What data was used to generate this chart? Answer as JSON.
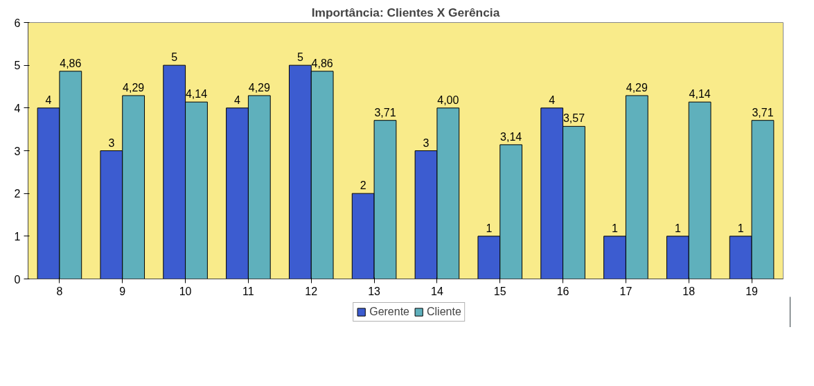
{
  "chart_data": {
    "type": "bar",
    "title": "Importância: Clientes X Gerência",
    "categories": [
      "8",
      "9",
      "10",
      "11",
      "12",
      "13",
      "14",
      "15",
      "16",
      "17",
      "18",
      "19"
    ],
    "series": [
      {
        "name": "Gerente",
        "color": "#3c5cd0",
        "values": [
          4,
          3,
          5,
          4,
          5,
          2,
          3,
          1,
          4,
          1,
          1,
          1
        ],
        "value_labels": [
          "4",
          "3",
          "5",
          "4",
          "5",
          "2",
          "3",
          "1",
          "4",
          "1",
          "1",
          "1"
        ]
      },
      {
        "name": "Cliente",
        "color": "#5fb0bc",
        "values": [
          4.86,
          4.29,
          4.14,
          4.29,
          4.86,
          3.71,
          4.0,
          3.14,
          3.57,
          4.29,
          4.14,
          3.71
        ],
        "value_labels": [
          "4,86",
          "4,29",
          "4,14",
          "4,29",
          "4,86",
          "3,71",
          "4,00",
          "3,14",
          "3,57",
          "4,29",
          "4,14",
          "3,71"
        ]
      }
    ],
    "ylim": [
      0,
      6
    ],
    "yticks": [
      0,
      1,
      2,
      3,
      4,
      5,
      6
    ],
    "legend": "bottom"
  }
}
